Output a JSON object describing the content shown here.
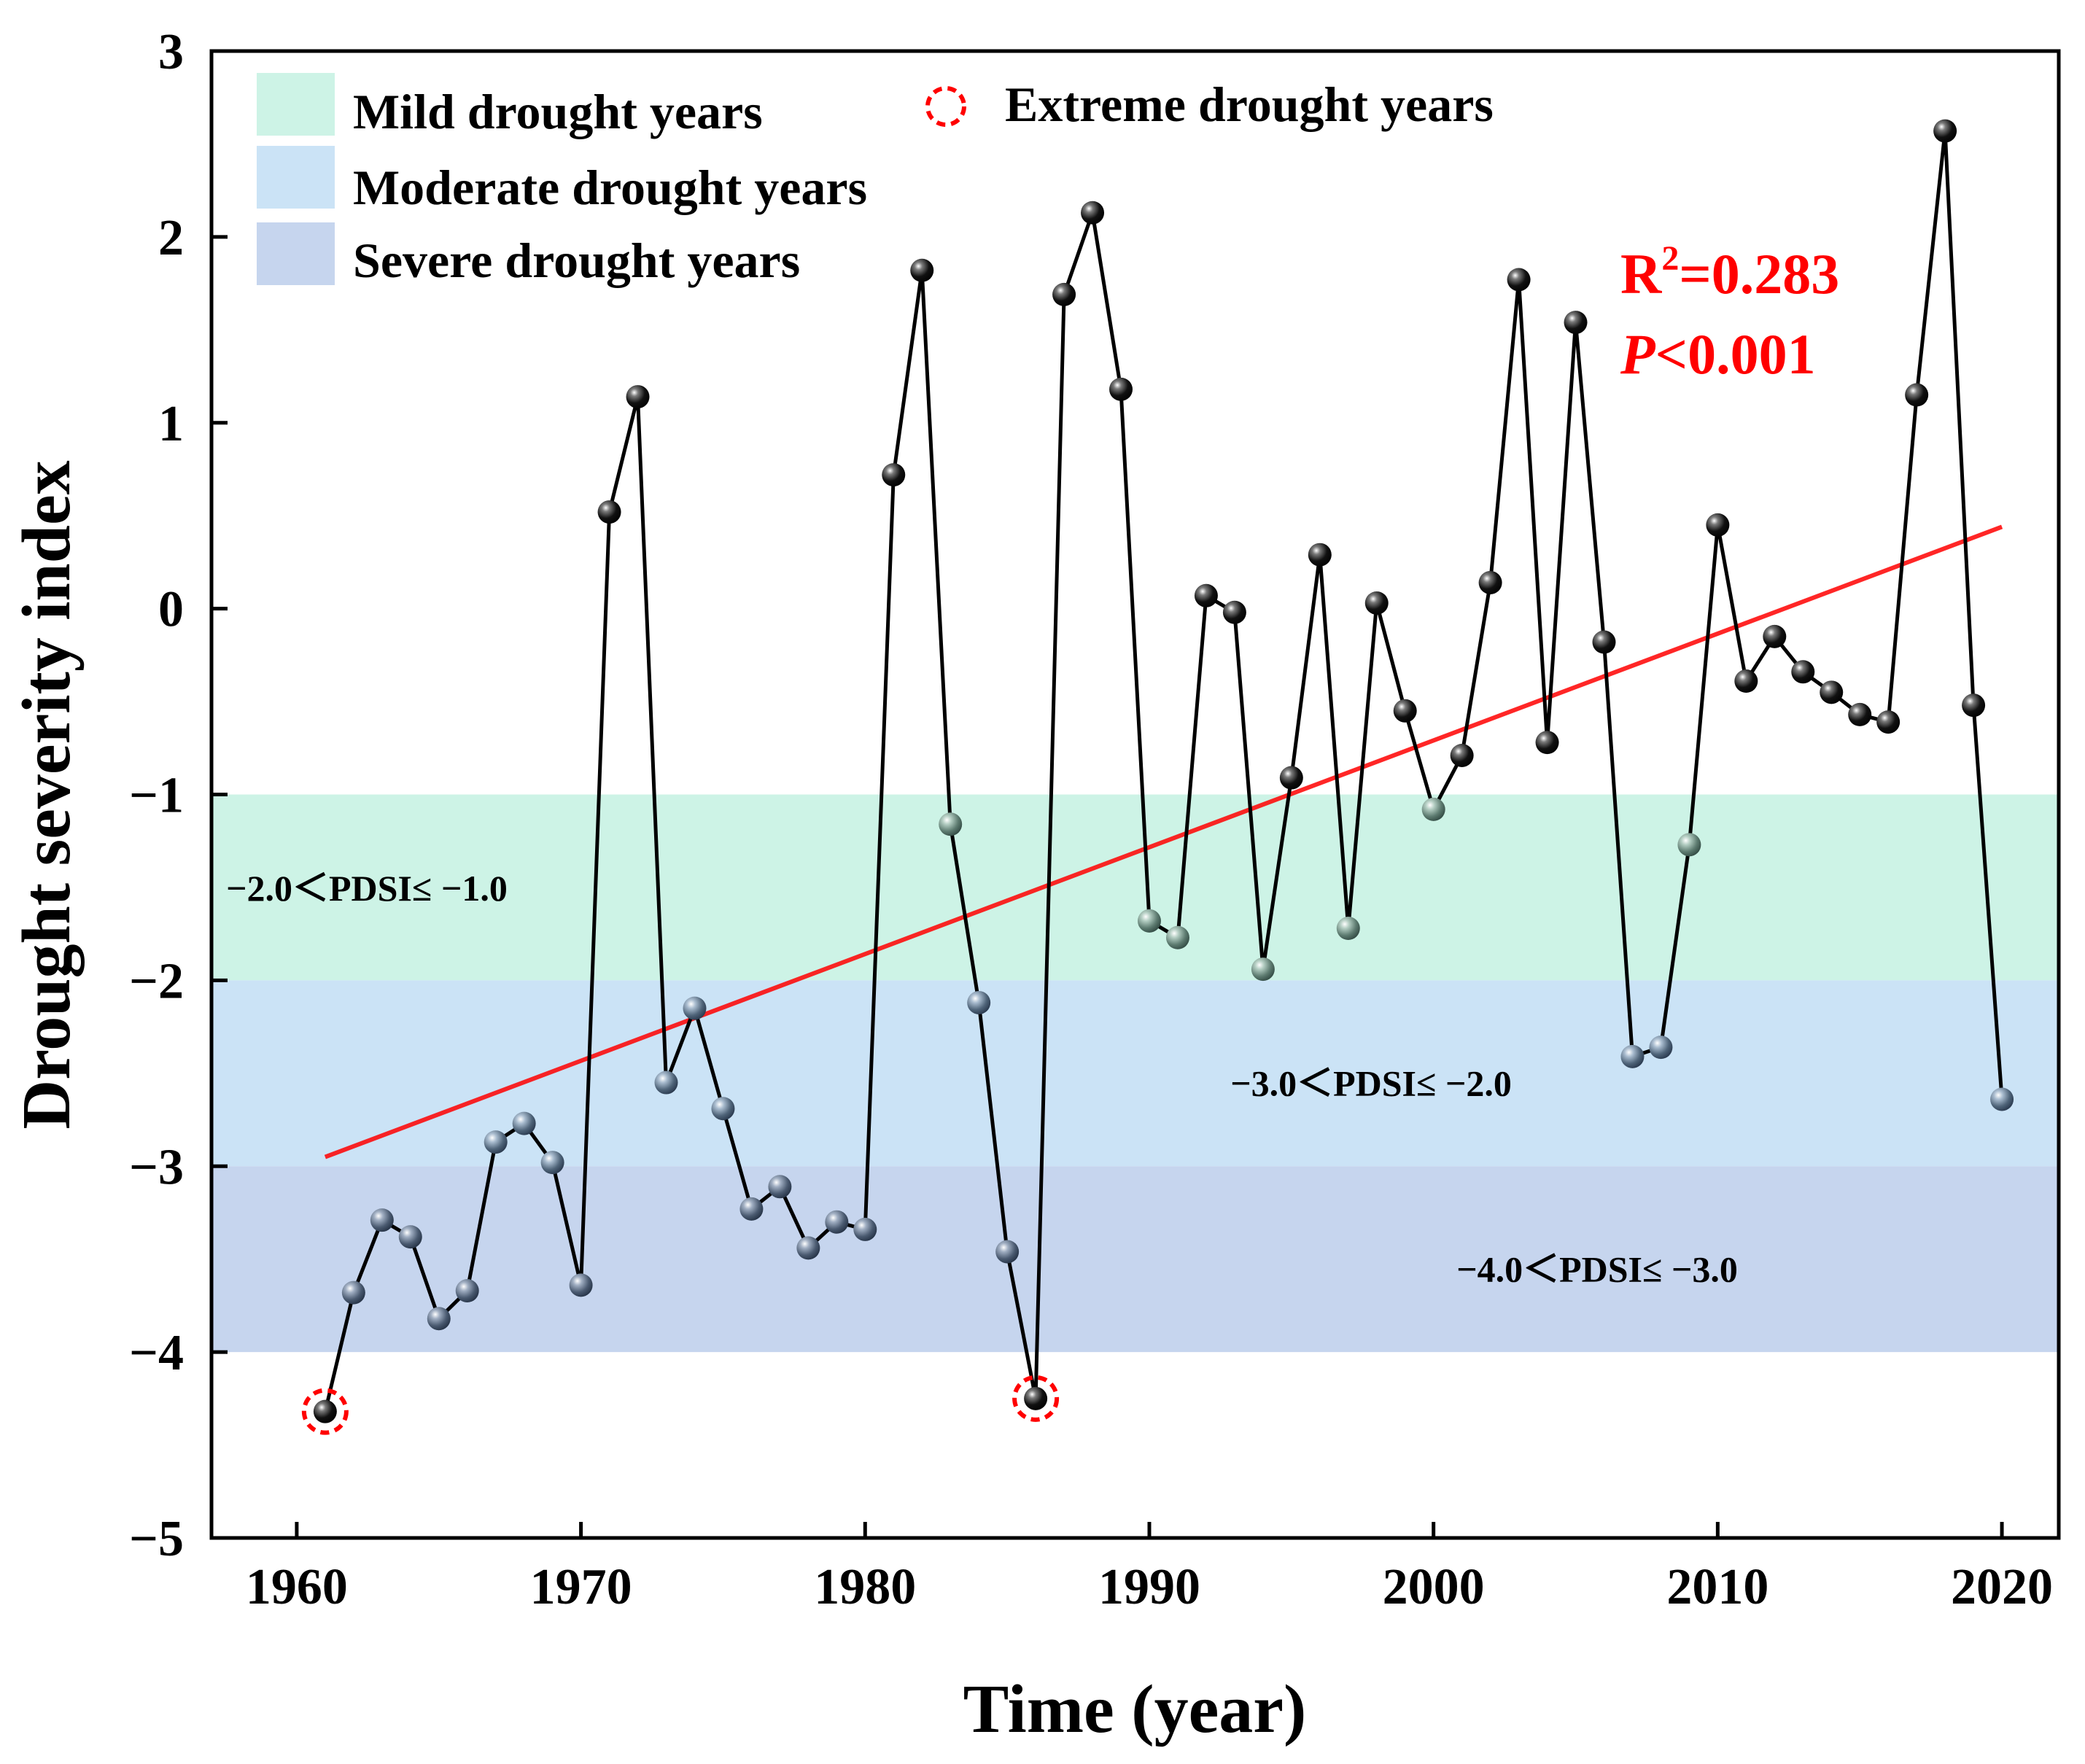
{
  "chart_data": {
    "type": "line",
    "xlabel": "Time (year)",
    "ylabel": "Drought severity index",
    "xlim": [
      1957,
      2022
    ],
    "ylim": [
      -5,
      3
    ],
    "xticks": [
      1960,
      1970,
      1980,
      1990,
      2000,
      2010,
      2020
    ],
    "yticks": [
      -5,
      -4,
      -3,
      -2,
      -1,
      0,
      1,
      2,
      3
    ],
    "ytick_labels": [
      "−5",
      "−4",
      "−3",
      "−2",
      "−1",
      "0",
      "1",
      "2",
      "3"
    ],
    "grid": false,
    "bands": [
      {
        "name": "Mild drought years",
        "range_label": "−2.0＜PDSI≤ −1.0",
        "ymin": -2,
        "ymax": -1,
        "color": "#cdf3e6"
      },
      {
        "name": "Moderate drought years",
        "range_label": "−3.0＜PDSI≤ −2.0",
        "ymin": -3,
        "ymax": -2,
        "color": "#cbe3f6"
      },
      {
        "name": "Severe drought years",
        "range_label": "−4.0＜PDSI≤ −3.0",
        "ymin": -4,
        "ymax": -3,
        "color": "#c6d5ee"
      }
    ],
    "extreme_label": "Extreme drought years",
    "extreme_years": [
      1961,
      1986
    ],
    "x": [
      1961,
      1962,
      1963,
      1964,
      1965,
      1966,
      1967,
      1968,
      1969,
      1970,
      1971,
      1972,
      1973,
      1974,
      1975,
      1976,
      1977,
      1978,
      1979,
      1980,
      1981,
      1982,
      1983,
      1984,
      1985,
      1986,
      1987,
      1988,
      1989,
      1990,
      1991,
      1992,
      1993,
      1994,
      1995,
      1996,
      1997,
      1998,
      1999,
      2000,
      2001,
      2002,
      2003,
      2004,
      2005,
      2006,
      2007,
      2008,
      2009,
      2010,
      2011,
      2012,
      2013,
      2014,
      2015,
      2016,
      2017,
      2018,
      2019,
      2020
    ],
    "values": [
      -4.32,
      -3.68,
      -3.29,
      -3.38,
      -3.82,
      -3.67,
      -2.87,
      -2.77,
      -2.98,
      -3.64,
      0.52,
      1.14,
      -2.55,
      -2.15,
      -2.69,
      -3.23,
      -3.11,
      -3.44,
      -3.3,
      -3.34,
      0.72,
      1.82,
      -1.16,
      -2.12,
      -3.46,
      -4.25,
      1.69,
      2.13,
      1.18,
      -1.68,
      -1.77,
      0.07,
      -0.02,
      -1.94,
      -0.91,
      0.29,
      -1.72,
      0.03,
      -0.55,
      -1.08,
      -0.79,
      0.14,
      1.77,
      -0.72,
      1.54,
      -0.18,
      -2.41,
      -2.36,
      -1.27,
      0.45,
      -0.39,
      -0.15,
      -0.34,
      -0.45,
      -0.57,
      -0.61,
      1.15,
      2.57,
      -0.52,
      -2.64
    ],
    "trend": {
      "x": [
        1961,
        2020
      ],
      "y": [
        -2.95,
        0.44
      ],
      "color": "#ff0000"
    },
    "stats": {
      "r2_label": "R",
      "r2_sup": "2",
      "r2_value": "=0.283",
      "p_label": "P",
      "p_value": "<0.001"
    }
  }
}
